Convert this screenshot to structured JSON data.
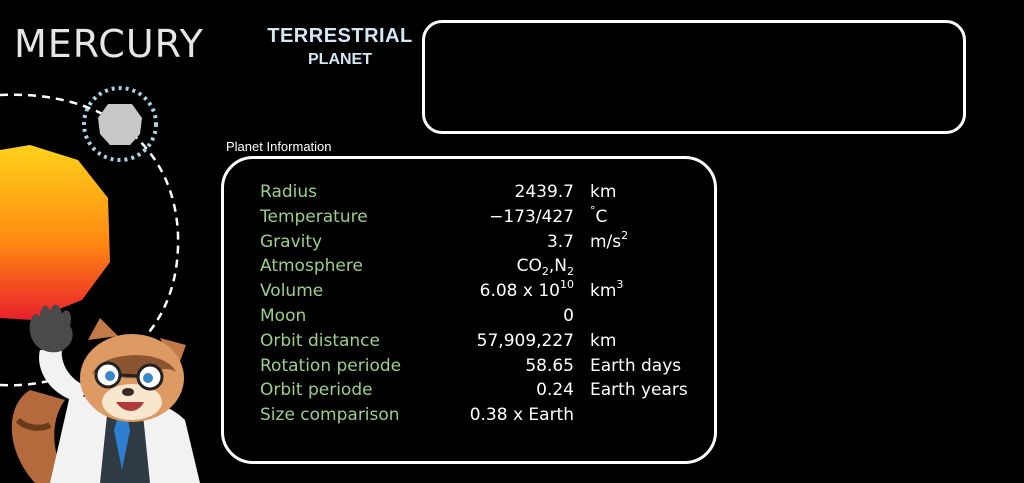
{
  "header": {
    "planet_name": "MERCURY",
    "category_line1": "TERRESTRIAL",
    "category_line2": "PLANET"
  },
  "info": {
    "section_label": "Planet Information",
    "rows": [
      {
        "label": "Radius",
        "value": "2439.7",
        "unit": "km"
      },
      {
        "label": "Temperature",
        "value": "−173/427",
        "unit_pre": "°",
        "unit": "C"
      },
      {
        "label": "Gravity",
        "value": "3.7",
        "unit": "m/s",
        "unit_sup": "2"
      },
      {
        "label": "Atmosphere",
        "value_a": "CO",
        "value_a_sub": "2",
        "value_b": ",N",
        "value_b_sub": "2"
      },
      {
        "label": "Volume",
        "value": "6.08 x 10",
        "value_sup": "10",
        "unit": "km",
        "unit_sup": "3"
      },
      {
        "label": "Moon",
        "value": "0"
      },
      {
        "label": "Orbit distance",
        "value": "57,909,227",
        "unit": "km"
      },
      {
        "label": "Rotation periode",
        "value": "58.65",
        "unit": "Earth days"
      },
      {
        "label": "Orbit periode",
        "value": "0.24",
        "unit": "Earth years"
      },
      {
        "label": "Size comparison",
        "value": "0.38 x Earth"
      }
    ]
  },
  "colors": {
    "background": "#000000",
    "label_green": "#9ccf8a",
    "category_blue": "#d3e8f4",
    "sun_gradient_top": "#ffd21a",
    "sun_gradient_bottom": "#e8202a",
    "planet_gray": "#c8c8c8"
  },
  "icons": [
    "sun-icon",
    "mercury-planet-icon",
    "orbit-path",
    "raccoon-scientist-mascot"
  ]
}
